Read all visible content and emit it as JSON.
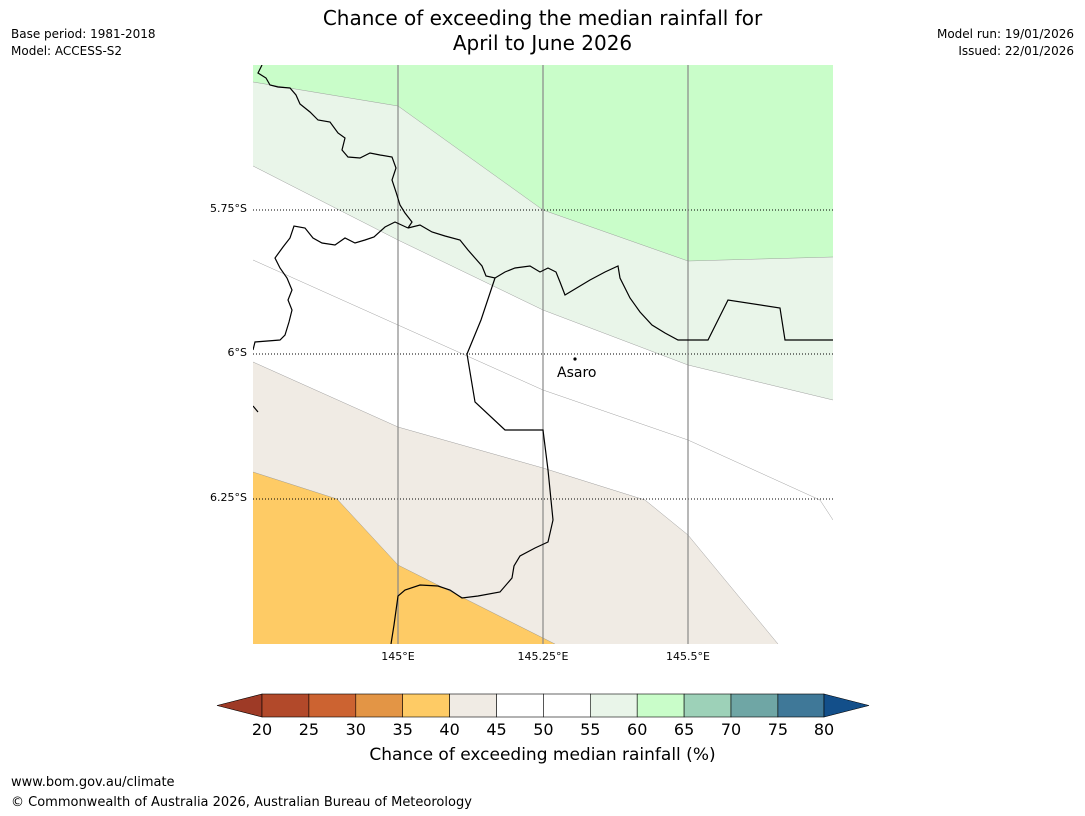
{
  "header": {
    "title_line1": "Chance of exceeding the median rainfall for",
    "title_line2": "April to June 2026",
    "base_period": "Base period: 1981-2018",
    "model": "Model: ACCESS-S2",
    "model_run": "Model run: 19/01/2026",
    "issued": "Issued: 22/01/2026"
  },
  "map": {
    "lat_labels": [
      "5.75°S",
      "6°S",
      "6.25°S"
    ],
    "lon_labels": [
      "145°E",
      "145.25°E",
      "145.5°E"
    ],
    "place": {
      "name": "Asaro"
    }
  },
  "colorbar": {
    "title": "Chance of exceeding median rainfall (%)",
    "ticks": [
      "20",
      "25",
      "30",
      "35",
      "40",
      "45",
      "50",
      "55",
      "60",
      "65",
      "70",
      "75",
      "80"
    ],
    "low_extend_color": "#9e3a26",
    "high_extend_color": "#134f8a",
    "colors": [
      "#b2492a",
      "#cc6331",
      "#e39545",
      "#fecb65",
      "#f0ebe4",
      "#ffffff",
      "#ffffff",
      "#e9f5e9",
      "#c9fdc9",
      "#9dd1b8",
      "#6fa6a5",
      "#3f7898"
    ]
  },
  "footer": {
    "url": "www.bom.gov.au/climate",
    "copyright": "© Commonwealth of Australia 2026, Australian Bureau of Meteorology"
  }
}
